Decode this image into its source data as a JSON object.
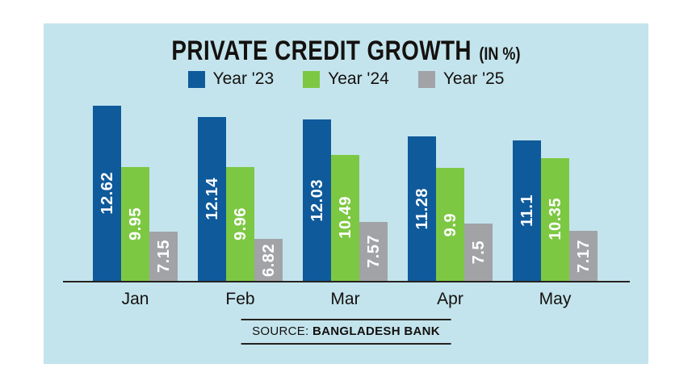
{
  "header": {
    "title": "PRIVATE CREDIT GROWTH",
    "title_suffix": "(IN %)"
  },
  "chart_data": {
    "type": "bar",
    "title": "PRIVATE CREDIT GROWTH (IN %)",
    "categories": [
      "Jan",
      "Feb",
      "Mar",
      "Apr",
      "May"
    ],
    "series": [
      {
        "name": "Year '23",
        "color": "#0e5a9b",
        "values": [
          12.62,
          12.14,
          12.03,
          11.28,
          11.1
        ]
      },
      {
        "name": "Year '24",
        "color": "#7dc843",
        "values": [
          9.95,
          9.96,
          10.49,
          9.9,
          10.35
        ]
      },
      {
        "name": "Year '25",
        "color": "#a1a3a6",
        "values": [
          7.15,
          6.82,
          7.57,
          7.5,
          7.17
        ]
      }
    ],
    "ylim": [
      5,
      13
    ],
    "grid": false,
    "legend_position": "top",
    "value_labels": "inside-rotated-white",
    "xlabel": "",
    "ylabel": ""
  },
  "colors": {
    "panel_background": "#c3e4ed",
    "axis": "#26221f",
    "value_label_text": "#ffffff"
  },
  "source": {
    "prefix": "SOURCE:",
    "name": "BANGLADESH BANK"
  }
}
